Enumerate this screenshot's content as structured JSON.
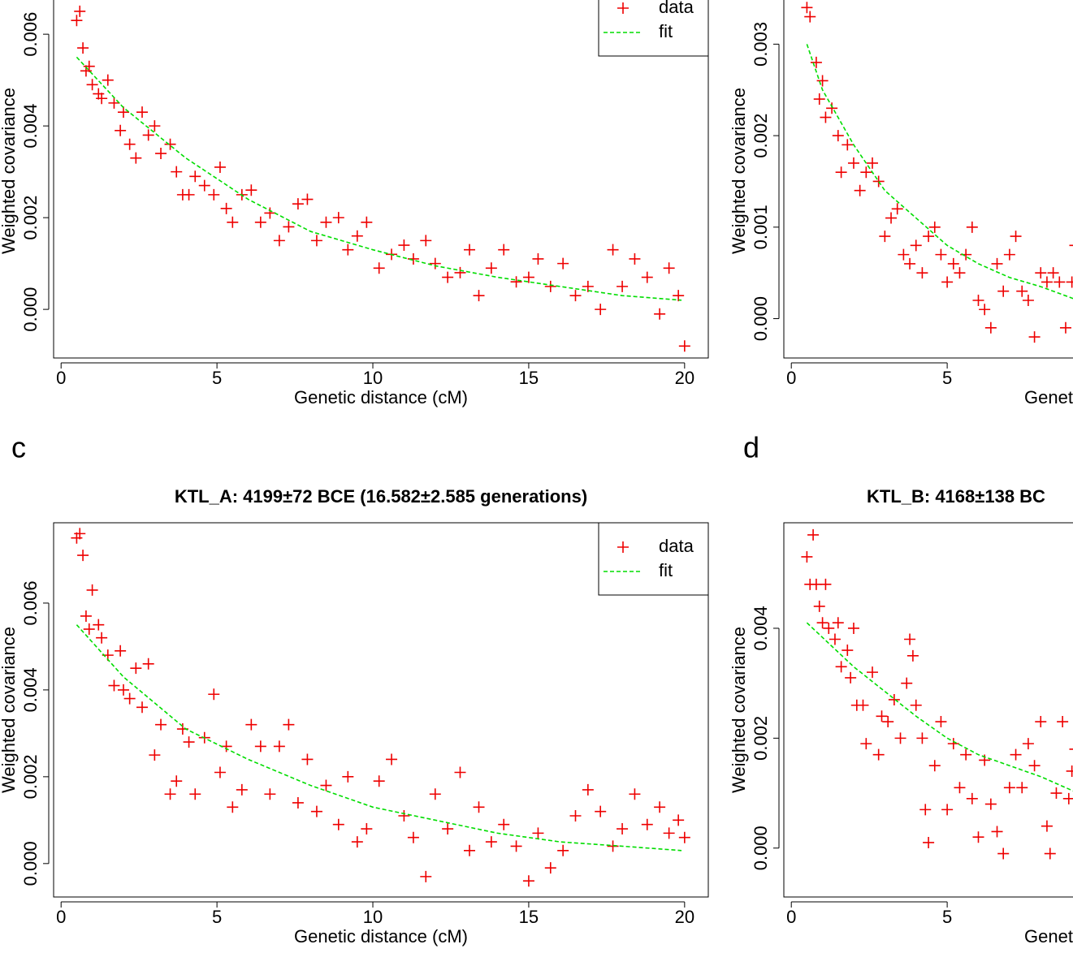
{
  "chart_data": [
    {
      "type": "scatter",
      "xlabel": "Genetic distance (cM)",
      "ylabel": "Weighted covariance",
      "xlim": [
        -0.24,
        20.76
      ],
      "xticks": [
        0,
        5,
        10,
        15,
        20
      ],
      "ylim": [
        -0.00106,
        0.0071
      ],
      "yticks": [
        {
          "value": 0,
          "label": "0.000"
        },
        0.002,
        0.004,
        0.006
      ],
      "legend": "topright",
      "series": [
        {
          "name": "data",
          "color": "#ee0000",
          "marker": "+",
          "x": [
            0.5,
            0.6,
            0.7,
            0.8,
            0.9,
            1.0,
            1.2,
            1.3,
            1.5,
            1.7,
            1.9,
            2.0,
            2.2,
            2.4,
            2.6,
            2.8,
            3.0,
            3.2,
            3.5,
            3.7,
            3.9,
            4.1,
            4.3,
            4.6,
            4.9,
            5.1,
            5.3,
            5.5,
            5.8,
            6.1,
            6.4,
            6.7,
            7.0,
            7.3,
            7.6,
            7.9,
            8.2,
            8.5,
            8.9,
            9.2,
            9.5,
            9.8,
            10.2,
            10.6,
            11.0,
            11.3,
            11.7,
            12.0,
            12.4,
            12.8,
            13.1,
            13.4,
            13.8,
            14.2,
            14.6,
            15.0,
            15.3,
            15.7,
            16.1,
            16.5,
            16.9,
            17.3,
            17.7,
            18.0,
            18.4,
            18.8,
            19.2,
            19.5,
            19.8,
            20.0
          ],
          "values": [
            0.0063,
            0.0065,
            0.0057,
            0.0052,
            0.0053,
            0.0049,
            0.0047,
            0.0046,
            0.005,
            0.0045,
            0.0039,
            0.0043,
            0.0036,
            0.0033,
            0.0043,
            0.0038,
            0.004,
            0.0034,
            0.0036,
            0.003,
            0.0025,
            0.0025,
            0.0029,
            0.0027,
            0.0025,
            0.0031,
            0.0022,
            0.0019,
            0.0025,
            0.0026,
            0.0019,
            0.0021,
            0.0015,
            0.0018,
            0.0023,
            0.0024,
            0.0015,
            0.0019,
            0.002,
            0.0013,
            0.0016,
            0.0019,
            0.0009,
            0.0012,
            0.0014,
            0.0011,
            0.0015,
            0.001,
            0.0007,
            0.0008,
            0.0013,
            0.0003,
            0.0009,
            0.0013,
            0.0006,
            0.0007,
            0.0011,
            0.0005,
            0.001,
            0.0003,
            0.0005,
            0.0,
            0.0013,
            0.0005,
            0.0011,
            0.0007,
            -0.0001,
            0.0009,
            0.0003,
            -0.0008
          ]
        },
        {
          "name": "fit",
          "color": "#00dd00",
          "line": "dashed",
          "x": [
            0.5,
            2,
            4,
            6,
            8,
            10,
            12,
            14,
            16,
            18,
            19.9
          ],
          "values": [
            0.0055,
            0.0044,
            0.0033,
            0.0024,
            0.0017,
            0.0013,
            0.00095,
            0.0007,
            0.0005,
            0.0003,
            0.0002
          ]
        }
      ]
    },
    {
      "type": "scatter",
      "xlabel": "Genetic distance (cM)",
      "ylabel": "Weighted covariance",
      "xlim": [
        -0.24,
        20.76
      ],
      "xticks": [
        0,
        5
      ],
      "ylim": [
        -0.00043,
        0.00366
      ],
      "yticks": [
        {
          "value": 0,
          "label": "0.000"
        },
        0.001,
        0.002,
        0.003
      ],
      "series": [
        {
          "color": "#ee0000",
          "marker": "+",
          "x": [
            0.5,
            0.6,
            0.8,
            0.9,
            1.0,
            1.1,
            1.3,
            1.5,
            1.6,
            1.8,
            2.0,
            2.2,
            2.4,
            2.6,
            2.8,
            3.0,
            3.2,
            3.4,
            3.6,
            3.8,
            4.0,
            4.2,
            4.4,
            4.6,
            4.8,
            5.0,
            5.2,
            5.4,
            5.6,
            5.8,
            6.0,
            6.2,
            6.4,
            6.6,
            6.8,
            7.0,
            7.2,
            7.4,
            7.6,
            7.8,
            8.0,
            8.2,
            8.4,
            8.6,
            8.8,
            9.0,
            9.1
          ],
          "values": [
            0.0034,
            0.0033,
            0.0028,
            0.0024,
            0.0026,
            0.0022,
            0.0023,
            0.002,
            0.0016,
            0.0019,
            0.0017,
            0.0014,
            0.0016,
            0.0017,
            0.0015,
            0.0009,
            0.0011,
            0.0012,
            0.0007,
            0.0006,
            0.0008,
            0.0005,
            0.0009,
            0.001,
            0.0007,
            0.0004,
            0.0006,
            0.0005,
            0.0007,
            0.001,
            0.0002,
            0.0001,
            -0.0001,
            0.0006,
            0.0003,
            0.0007,
            0.0009,
            0.0003,
            0.0002,
            -0.0002,
            0.0005,
            0.0004,
            0.0005,
            0.0004,
            -0.0001,
            0.0004,
            0.0008
          ]
        },
        {
          "color": "#00dd00",
          "line": "dashed",
          "x": [
            0.5,
            1,
            2,
            3,
            4,
            5,
            6,
            7,
            8,
            9.2
          ],
          "values": [
            0.003,
            0.0025,
            0.0019,
            0.0014,
            0.0011,
            0.0008,
            0.0006,
            0.00045,
            0.00035,
            0.0002
          ]
        }
      ]
    },
    {
      "type": "scatter",
      "panel_label": "c",
      "title": "KTL_A: 4199±72 BCE (16.582±2.585 generations)",
      "xlabel": "Genetic distance (cM)",
      "ylabel": "Weighted covariance",
      "xlim": [
        -0.24,
        20.76
      ],
      "xticks": [
        0,
        5,
        10,
        15,
        20
      ],
      "ylim": [
        -0.00077,
        0.00785
      ],
      "yticks": [
        {
          "value": 0,
          "label": "0.000"
        },
        0.002,
        0.004,
        0.006
      ],
      "legend": "topright",
      "series": [
        {
          "name": "data",
          "color": "#ee0000",
          "marker": "+",
          "x": [
            0.5,
            0.6,
            0.7,
            0.8,
            0.9,
            1.0,
            1.2,
            1.3,
            1.5,
            1.7,
            1.9,
            2.0,
            2.2,
            2.4,
            2.6,
            2.8,
            3.0,
            3.2,
            3.5,
            3.7,
            3.9,
            4.1,
            4.3,
            4.6,
            4.9,
            5.1,
            5.3,
            5.5,
            5.8,
            6.1,
            6.4,
            6.7,
            7.0,
            7.3,
            7.6,
            7.9,
            8.2,
            8.5,
            8.9,
            9.2,
            9.5,
            9.8,
            10.2,
            10.6,
            11.0,
            11.3,
            11.7,
            12.0,
            12.4,
            12.8,
            13.1,
            13.4,
            13.8,
            14.2,
            14.6,
            15.0,
            15.3,
            15.7,
            16.1,
            16.5,
            16.9,
            17.3,
            17.7,
            18.0,
            18.4,
            18.8,
            19.2,
            19.5,
            19.8,
            20.0
          ],
          "values": [
            0.0075,
            0.0076,
            0.0071,
            0.0057,
            0.0054,
            0.0063,
            0.0055,
            0.0052,
            0.0048,
            0.0041,
            0.0049,
            0.004,
            0.0038,
            0.0045,
            0.0036,
            0.0046,
            0.0025,
            0.0032,
            0.0016,
            0.0019,
            0.0031,
            0.0028,
            0.0016,
            0.0029,
            0.0039,
            0.0021,
            0.0027,
            0.0013,
            0.0017,
            0.0032,
            0.0027,
            0.0016,
            0.0027,
            0.0032,
            0.0014,
            0.0024,
            0.0012,
            0.0018,
            0.0009,
            0.002,
            0.0005,
            0.0008,
            0.0019,
            0.0024,
            0.0011,
            0.0006,
            -0.0003,
            0.0016,
            0.0008,
            0.0021,
            0.0003,
            0.0013,
            0.0005,
            0.0009,
            0.0004,
            -0.0004,
            0.0007,
            -0.0001,
            0.0003,
            0.0011,
            0.0017,
            0.0012,
            0.0004,
            0.0008,
            0.0016,
            0.0009,
            0.0013,
            0.0007,
            0.001,
            0.0006
          ]
        },
        {
          "name": "fit",
          "color": "#00dd00",
          "line": "dashed",
          "x": [
            0.5,
            2,
            4,
            6,
            8,
            10,
            12,
            14,
            16,
            18,
            19.9
          ],
          "values": [
            0.0055,
            0.0043,
            0.0031,
            0.0024,
            0.0018,
            0.0013,
            0.001,
            0.0007,
            0.0005,
            0.0004,
            0.0003
          ]
        }
      ]
    },
    {
      "type": "scatter",
      "panel_label": "d",
      "title": "KTL_B: 4168±138 BC",
      "xlabel": "Genetic distance (cM)",
      "ylabel": "Weighted covariance",
      "xlim": [
        -0.24,
        20.76
      ],
      "xticks": [
        0,
        5
      ],
      "ylim": [
        -0.00089,
        0.00592
      ],
      "yticks": [
        {
          "value": 0,
          "label": "0.000"
        },
        0.002,
        0.004
      ],
      "series": [
        {
          "color": "#ee0000",
          "marker": "+",
          "x": [
            0.5,
            0.6,
            0.7,
            0.8,
            0.9,
            1.0,
            1.1,
            1.2,
            1.4,
            1.5,
            1.6,
            1.8,
            1.9,
            2.0,
            2.1,
            2.3,
            2.4,
            2.6,
            2.8,
            2.9,
            3.1,
            3.3,
            3.5,
            3.7,
            3.8,
            3.9,
            4.0,
            4.2,
            4.3,
            4.4,
            4.6,
            4.8,
            5.0,
            5.2,
            5.4,
            5.6,
            5.8,
            6.0,
            6.2,
            6.4,
            6.6,
            6.8,
            7.0,
            7.2,
            7.4,
            7.6,
            7.8,
            8.0,
            8.2,
            8.3,
            8.5,
            8.7,
            8.9,
            9.0,
            9.1
          ],
          "values": [
            0.0053,
            0.0048,
            0.0057,
            0.0048,
            0.0044,
            0.0041,
            0.0048,
            0.004,
            0.0038,
            0.0041,
            0.0033,
            0.0036,
            0.0031,
            0.004,
            0.0026,
            0.0026,
            0.0019,
            0.0032,
            0.0017,
            0.0024,
            0.0023,
            0.0027,
            0.002,
            0.003,
            0.0038,
            0.0035,
            0.0026,
            0.002,
            0.0007,
            0.0001,
            0.0015,
            0.0023,
            0.0007,
            0.0019,
            0.0011,
            0.0017,
            0.0009,
            0.0002,
            0.0016,
            0.0008,
            0.0003,
            -0.0001,
            0.0011,
            0.0017,
            0.0011,
            0.0019,
            0.0015,
            0.0023,
            0.0004,
            -0.0001,
            0.001,
            0.0023,
            0.0009,
            0.0014,
            0.0018
          ]
        },
        {
          "color": "#00dd00",
          "line": "dashed",
          "x": [
            0.5,
            2,
            4,
            5,
            6,
            8,
            9.2
          ],
          "values": [
            0.0041,
            0.0033,
            0.0024,
            0.002,
            0.0017,
            0.0013,
            0.001
          ]
        }
      ]
    }
  ]
}
